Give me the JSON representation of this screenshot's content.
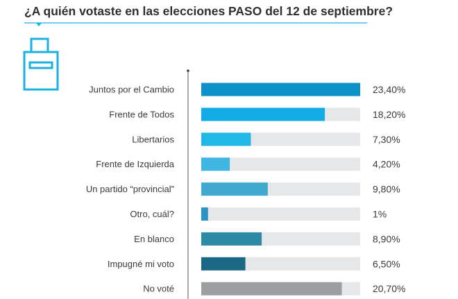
{
  "page": {
    "title": "¿A quién votaste en las elecciones PASO del 12 de septiembre?",
    "accent": "#1ab2e0"
  },
  "icons": [
    "ballot-box-icon"
  ],
  "chart_data": {
    "type": "bar",
    "orientation": "horizontal",
    "title": "¿A quién votaste en las elecciones PASO del 12 de septiembre?",
    "xlabel": "",
    "ylabel": "",
    "xlim": [
      0,
      23.4
    ],
    "categories": [
      "Juntos por el Cambio",
      "Frente de Todos",
      "Libertarios",
      "Frente de Izquierda",
      "Un partido “provincial”",
      "Otro, cuál?",
      "En blanco",
      "Impugné mi voto",
      "No voté"
    ],
    "values": [
      23.4,
      18.2,
      7.3,
      4.2,
      9.8,
      1,
      8.9,
      6.5,
      20.7
    ],
    "value_labels": [
      "23,40%",
      "18,20%",
      "7,30%",
      "4,20%",
      "9,80%",
      "1%",
      "8,90%",
      "6,50%",
      "20,70%"
    ],
    "colors": [
      "#0b90c7",
      "#11ace5",
      "#21b8e6",
      "#3fb5e2",
      "#41a8cf",
      "#2c93c4",
      "#2c8aa7",
      "#1a6883",
      "#9c9fa2"
    ],
    "track_color": "#e6e7e8"
  }
}
